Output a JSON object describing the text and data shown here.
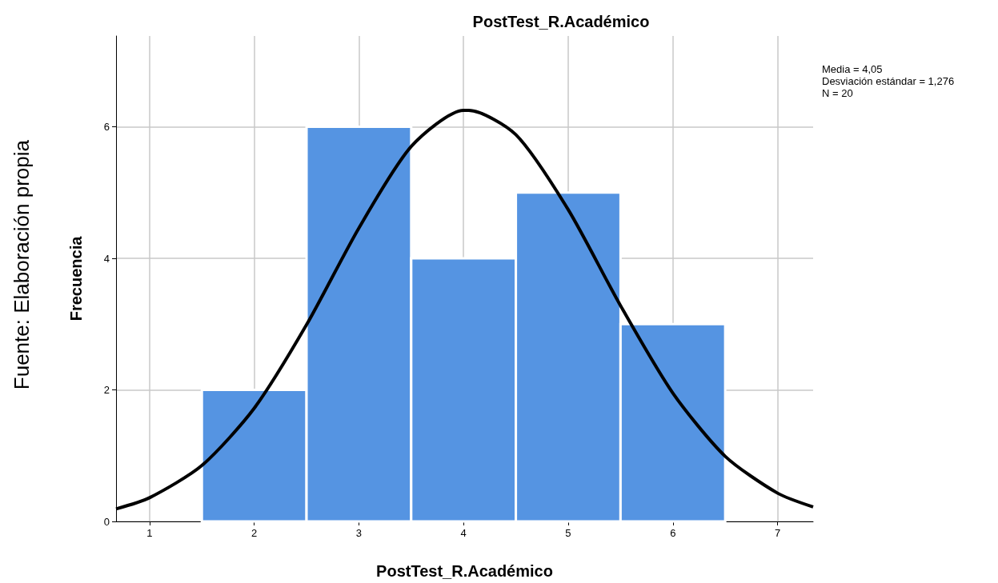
{
  "chart_data": {
    "type": "histogram",
    "title": "PostTest_R.Académico",
    "xlabel": "PostTest_R.Académico",
    "ylabel": "Frecuencia",
    "bins": [
      1.5,
      2.5,
      3.5,
      4.5,
      5.5,
      6.5
    ],
    "values": [
      2,
      6,
      4,
      5,
      3
    ],
    "color": "#5594e2",
    "series": [
      {
        "type": "line",
        "color": "#000000",
        "x": [
          0.68,
          1,
          1.5,
          2,
          2.5,
          3,
          3.5,
          4,
          4.05,
          4.5,
          5,
          5.5,
          6,
          6.5,
          7,
          7.34
        ],
        "values": [
          0.19,
          0.36,
          0.85,
          1.72,
          2.99,
          4.46,
          5.7,
          6.25,
          6.25,
          5.88,
          4.74,
          3.28,
          1.95,
          0.99,
          0.43,
          0.22
        ]
      }
    ],
    "xlim": [
      0.68,
      7.34
    ],
    "xticks": [
      1,
      2,
      3,
      4,
      5,
      6,
      7
    ],
    "ylim": [
      0,
      7.38
    ],
    "yticks": [
      0,
      2,
      4,
      6
    ],
    "grid": true,
    "annotations": [
      "Fuente: Elaboración propia",
      "Media = 4,05",
      "Desviación estándar = 1,276",
      "N = 20"
    ]
  }
}
